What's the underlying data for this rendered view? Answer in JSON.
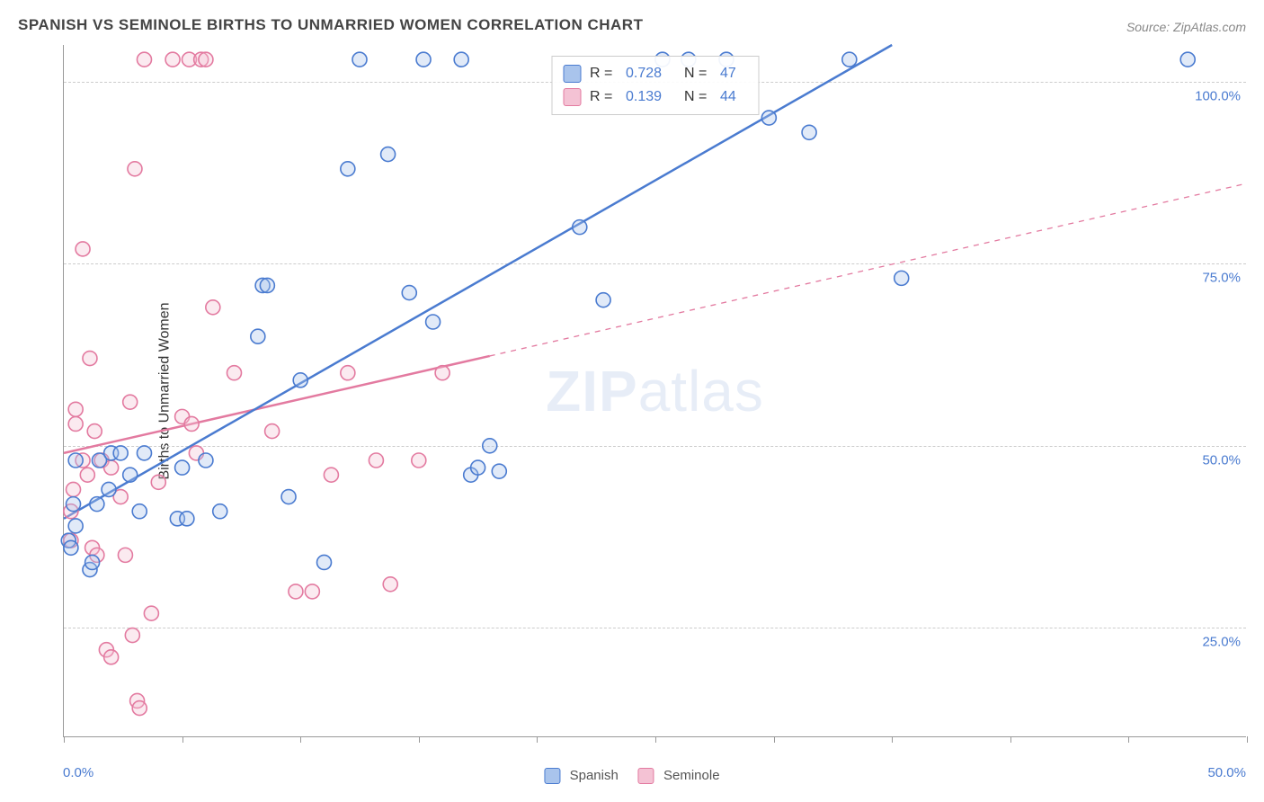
{
  "chart": {
    "type": "scatter-correlation",
    "title": "SPANISH VS SEMINOLE BIRTHS TO UNMARRIED WOMEN CORRELATION CHART",
    "source_label": "Source: ZipAtlas.com",
    "watermark": "ZIPatlas",
    "ylabel": "Births to Unmarried Women",
    "background_color": "#ffffff",
    "title_color": "#444444",
    "title_fontsize": 17,
    "label_fontsize": 16,
    "tick_fontsize": 15,
    "tick_label_color": "#4a7bd0",
    "grid_color": "#cccccc",
    "axis_color": "#999999",
    "xlim": [
      0,
      50
    ],
    "ylim": [
      10,
      105
    ],
    "x_ticks": [
      0,
      5,
      10,
      15,
      20,
      25,
      30,
      35,
      40,
      45,
      50
    ],
    "x_min_label": "0.0%",
    "x_max_label": "50.0%",
    "y_gridlines": [
      25,
      50,
      75,
      100
    ],
    "y_grid_labels": [
      "25.0%",
      "50.0%",
      "75.0%",
      "100.0%"
    ],
    "marker_radius": 8,
    "marker_fill_opacity": 0.35,
    "marker_stroke_width": 1.6,
    "line_width": 2.5,
    "series": [
      {
        "name": "Spanish",
        "R": "0.728",
        "N": "47",
        "color_stroke": "#4a7bd0",
        "color_fill": "#a9c4ec",
        "points": [
          [
            0.2,
            37
          ],
          [
            0.3,
            36
          ],
          [
            0.4,
            42
          ],
          [
            0.5,
            48
          ],
          [
            0.5,
            39
          ],
          [
            1.1,
            33
          ],
          [
            1.2,
            34
          ],
          [
            1.4,
            42
          ],
          [
            1.5,
            48
          ],
          [
            1.9,
            44
          ],
          [
            2.0,
            49
          ],
          [
            2.4,
            49
          ],
          [
            2.8,
            46
          ],
          [
            3.2,
            41
          ],
          [
            3.4,
            49
          ],
          [
            4.8,
            40
          ],
          [
            5.0,
            47
          ],
          [
            5.2,
            40
          ],
          [
            6.0,
            48
          ],
          [
            6.6,
            41
          ],
          [
            8.2,
            65
          ],
          [
            8.4,
            72
          ],
          [
            8.6,
            72
          ],
          [
            9.5,
            43
          ],
          [
            10.0,
            59
          ],
          [
            11.0,
            34
          ],
          [
            12.0,
            88
          ],
          [
            12.5,
            103
          ],
          [
            13.7,
            90
          ],
          [
            14.6,
            71
          ],
          [
            15.2,
            103
          ],
          [
            15.6,
            67
          ],
          [
            16.8,
            103
          ],
          [
            17.2,
            46
          ],
          [
            17.5,
            47
          ],
          [
            18.0,
            50
          ],
          [
            18.4,
            46.5
          ],
          [
            21.8,
            80
          ],
          [
            22.8,
            70
          ],
          [
            25.3,
            103
          ],
          [
            26.4,
            103
          ],
          [
            28.0,
            103
          ],
          [
            29.8,
            95
          ],
          [
            31.5,
            93
          ],
          [
            33.2,
            103
          ],
          [
            35.4,
            73
          ],
          [
            47.5,
            103
          ]
        ],
        "trend": {
          "x1": 0,
          "y1": 40,
          "x2": 35,
          "y2": 105,
          "dashed_from_x": null
        }
      },
      {
        "name": "Seminole",
        "R": "0.139",
        "N": "44",
        "color_stroke": "#e37aa0",
        "color_fill": "#f4c2d4",
        "points": [
          [
            0.3,
            37
          ],
          [
            0.3,
            41
          ],
          [
            0.4,
            44
          ],
          [
            0.5,
            55
          ],
          [
            0.5,
            53
          ],
          [
            0.8,
            48
          ],
          [
            0.8,
            77
          ],
          [
            1.0,
            46
          ],
          [
            1.1,
            62
          ],
          [
            1.2,
            36
          ],
          [
            1.3,
            52
          ],
          [
            1.4,
            35
          ],
          [
            1.6,
            48
          ],
          [
            1.8,
            22
          ],
          [
            2.0,
            47
          ],
          [
            2.0,
            21
          ],
          [
            2.4,
            43
          ],
          [
            2.6,
            35
          ],
          [
            2.8,
            56
          ],
          [
            2.9,
            24
          ],
          [
            3.0,
            88
          ],
          [
            3.1,
            15
          ],
          [
            3.2,
            14
          ],
          [
            3.4,
            103
          ],
          [
            3.7,
            27
          ],
          [
            4.0,
            45
          ],
          [
            4.6,
            103
          ],
          [
            5.0,
            54
          ],
          [
            5.3,
            103
          ],
          [
            5.4,
            53
          ],
          [
            5.6,
            49
          ],
          [
            5.8,
            103
          ],
          [
            6.0,
            103
          ],
          [
            6.3,
            69
          ],
          [
            7.2,
            60
          ],
          [
            8.8,
            52
          ],
          [
            9.8,
            30
          ],
          [
            10.5,
            30
          ],
          [
            11.3,
            46
          ],
          [
            12.0,
            60
          ],
          [
            13.2,
            48
          ],
          [
            13.8,
            31
          ],
          [
            15.0,
            48
          ],
          [
            16.0,
            60
          ]
        ],
        "trend": {
          "x1": 0,
          "y1": 49,
          "x2": 50,
          "y2": 86,
          "dashed_from_x": 18
        }
      }
    ],
    "bottom_legend": [
      {
        "label": "Spanish",
        "fill": "#a9c4ec",
        "stroke": "#4a7bd0"
      },
      {
        "label": "Seminole",
        "fill": "#f4c2d4",
        "stroke": "#e37aa0"
      }
    ]
  }
}
